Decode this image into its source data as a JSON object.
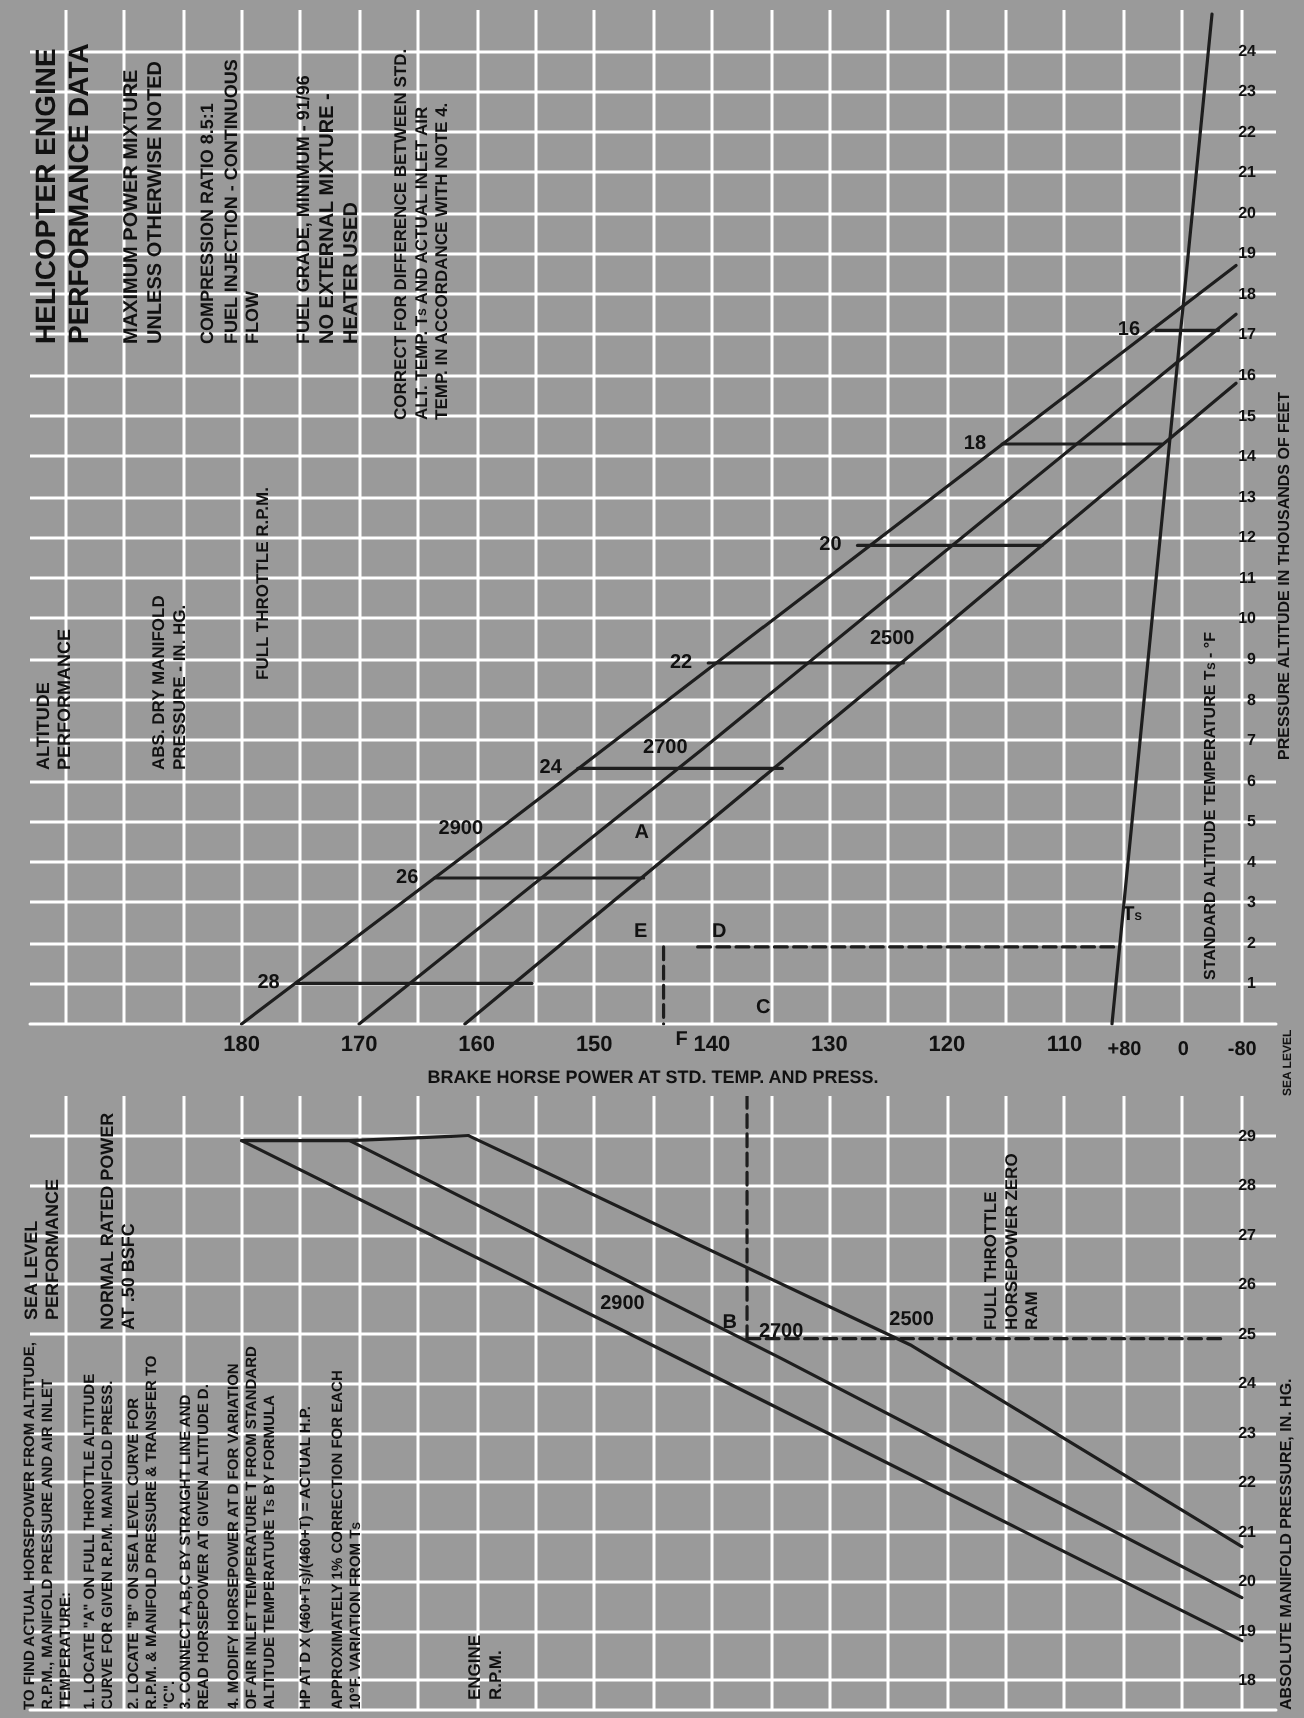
{
  "chart_data": [
    {
      "type": "line",
      "title": "HELICOPTER ENGINE PERFORMANCE DATA",
      "subtitle": "ALTITUDE PERFORMANCE",
      "xlabel": "BRAKE HORSE POWER AT STD. TEMP. AND PRESS.",
      "ylabel": "PRESSURE ALTITUDE IN THOUSANDS OF FEET",
      "x2label": "STANDARD ALTITUDE TEMPERATURE T$_{S}$ - °F",
      "xlim": [
        198,
        92
      ],
      "xticks": [
        {
          "value": 195,
          "label": null
        },
        {
          "value": 190,
          "label": null
        },
        {
          "value": 185,
          "label": null
        },
        180,
        {
          "value": 175,
          "label": null
        },
        170,
        {
          "value": 165,
          "label": null
        },
        160,
        {
          "value": 155,
          "label": null
        },
        150,
        {
          "value": 145,
          "label": null
        },
        140,
        {
          "value": 135,
          "label": null
        },
        130,
        {
          "value": 125,
          "label": null
        },
        120,
        {
          "value": 115,
          "label": null
        },
        110,
        {
          "value": 105,
          "label": null
        },
        {
          "value": 100,
          "label": null
        },
        {
          "value": 95,
          "label": null
        }
      ],
      "ylim": [
        0,
        25
      ],
      "yticks": [
        1,
        2,
        3,
        4,
        5,
        6,
        7,
        8,
        9,
        10,
        11,
        12,
        13,
        14,
        15,
        16,
        17,
        18,
        19,
        20,
        21,
        22,
        23,
        24
      ],
      "x2lim": [
        1568,
        -126
      ],
      "x2ticks": [
        {
          "value": 80,
          "label": "+80"
        },
        0,
        {
          "value": -80,
          "label": "-80"
        }
      ],
      "grid": true,
      "marker": "none",
      "series": [
        {
          "name": "2900",
          "color": "#1e1e1e",
          "x": [
            180,
            158.1,
            95.4
          ],
          "values": [
            0,
            4.8,
            18.7
          ]
        },
        {
          "name": "2700",
          "color": "#1e1e1e",
          "x": [
            170,
            140.7,
            95.4
          ],
          "values": [
            0,
            6.8,
            17.5
          ]
        },
        {
          "name": "2500",
          "color": "#1e1e1e",
          "x": [
            161,
            121.4,
            95.4
          ],
          "values": [
            0,
            9.5,
            15.8
          ]
        },
        {
          "name": "28",
          "color": "#1e1e1e",
          "x": [
            175.4,
            155.3
          ],
          "values": [
            1.0,
            1.0
          ]
        },
        {
          "name": "26",
          "color": "#1e1e1e",
          "x": [
            163.6,
            145.8
          ],
          "values": [
            3.6,
            3.6
          ]
        },
        {
          "name": "24",
          "color": "#1e1e1e",
          "x": [
            151.4,
            134
          ],
          "values": [
            6.3,
            6.3
          ]
        },
        {
          "name": "22",
          "color": "#1e1e1e",
          "x": [
            140.3,
            123.7
          ],
          "values": [
            8.9,
            8.9
          ]
        },
        {
          "name": "20",
          "color": "#1e1e1e",
          "x": [
            127.6,
            111.9
          ],
          "values": [
            11.8,
            11.8
          ]
        },
        {
          "name": "18",
          "color": "#1e1e1e",
          "x": [
            115.3,
            101.7
          ],
          "values": [
            14.3,
            14.3
          ]
        },
        {
          "name": "16",
          "color": "#1e1e1e",
          "x": [
            102.2,
            96.9
          ],
          "values": [
            17.1,
            17.1
          ]
        },
        {
          "color": "#1e1e1e",
          "axis": "x2",
          "x": [
            97,
            -39
          ],
          "values": [
            0,
            24.9
          ]
        },
        {
          "color": "#1e1e1e",
          "line_style": "dashed",
          "x": [
            141.2,
            105.6
          ],
          "values": [
            1.9,
            1.9
          ]
        },
        {
          "color": "#1e1e1e",
          "line_style": "dashed",
          "x": [
            144.1,
            144.1
          ],
          "values": [
            1.9,
            0
          ]
        }
      ],
      "annotations": [
        "MAXIMUM POWER MIXTURE UNLESS OTHERWISE NOTED",
        "COMPRESSION RATIO 8.5:1",
        "FUEL INJECTION - CONTINUOUS FLOW",
        "FUEL GRADE, MINIMUM - 91/96",
        "NO EXTERNAL MIXTURE - HEATER USED",
        "CORRECT FOR DIFFERENCE BETWEEN STD. ALT. TEMP. T$_{S}$ AND ACTUAL INLET AIR TEMP. IN ACCORDANCE WITH NOTE 4.",
        "ABS. DRY MANIFOLD PRESSURE - IN. HG.",
        "FULL THROTTLE R.P.M.",
        "SEA LEVEL",
        "D",
        "E",
        "C",
        {
          "text": "A",
          "x": 147.6,
          "y": 5.1
        },
        {
          "text": "F",
          "x": 144.1,
          "y": 0
        },
        {
          "text": "T$_{S}$",
          "x": 106.1,
          "y": 2.35
        }
      ]
    },
    {
      "type": "line",
      "title": "SEA LEVEL PERFORMANCE",
      "ylabel": "ABSOLUTE MANIFOLD PRESSURE, IN. HG.",
      "xlim": [
        198,
        92
      ],
      "xticks": [
        {
          "value": 195,
          "label": null
        },
        {
          "value": 190,
          "label": null
        },
        {
          "value": 185,
          "label": null
        },
        180,
        {
          "value": 175,
          "label": null
        },
        170,
        {
          "value": 165,
          "label": null
        },
        160,
        {
          "value": 155,
          "label": null
        },
        150,
        {
          "value": 145,
          "label": null
        },
        140,
        {
          "value": 135,
          "label": null
        },
        130,
        {
          "value": 125,
          "label": null
        },
        120,
        {
          "value": 115,
          "label": null
        },
        110,
        {
          "value": 105,
          "label": null
        },
        {
          "value": 100,
          "label": null
        },
        {
          "value": 95,
          "label": null
        }
      ],
      "ylim": [
        17.4,
        29.8
      ],
      "yticks": [
        18,
        19,
        20,
        21,
        22,
        23,
        24,
        25,
        26,
        27,
        28,
        29
      ],
      "tick_labels": "y",
      "grid": true,
      "marker": "none",
      "series": [
        {
          "name": "2900",
          "color": "#1e1e1e",
          "x": [
            180,
            147.6,
            94.9
          ],
          "values": [
            28.9,
            25.07,
            18.8
          ]
        },
        {
          "name": "2700",
          "color": "#1e1e1e",
          "x": [
            170.8,
            134.1,
            94.9
          ],
          "values": [
            28.9,
            24.5,
            19.67
          ]
        },
        {
          "name": "2500",
          "color": "#1e1e1e",
          "x": [
            160.7,
            123.0,
            94.9
          ],
          "values": [
            29.0,
            24.76,
            20.7
          ]
        },
        {
          "color": "#1e1e1e",
          "x": [
            180,
            170.8,
            160.7
          ],
          "values": [
            28.9,
            28.9,
            29.0
          ]
        },
        {
          "color": "#1e1e1e",
          "line_style": "dashed",
          "x": [
            137,
            96.5
          ],
          "values": [
            24.9,
            24.9
          ]
        },
        {
          "color": "#1e1e1e",
          "line_style": "dashed",
          "x": [
            137,
            137
          ],
          "values": [
            24.9,
            29.8
          ]
        }
      ],
      "annotations": [
        "NORMAL RATED POWER AT .50 BSFC",
        "TO FIND ACTUAL HORSEPOWER FROM ALTITUDE, R.P.M., MANIFOLD PRESSURE AND AIR INLET TEMPERATURE:",
        "1. LOCATE \"A\" ON FULL THROTTLE ALTITUDE CURVE FOR GIVEN R.P.M. MANIFOLD PRESS.",
        "2. LOCATE \"B\" ON SEA LEVEL CURVE FOR R.P.M. & MANIFOLD PRESSURE & TRANSFER TO \"C\".",
        "3. CONNECT A,B,C BY STRAIGHT LINE AND READ HORSEPOWER AT GIVEN ALTITUDE D.",
        "4. MODIFY HORSEPOWER AT D FOR VARIATION OF AIR INLET TEMPERATURE T FROM STANDARD ALTITUDE TEMPERATURE T$_{S}$ BY FORMULA",
        "HP AT D X (460+T$_{S}$)/(460+T) = ACTUAL H.P.",
        "APPROXIMATELY 1% CORRECTION FOR EACH 10°F. VARIATION FROM T$_{S}$",
        "FULL THROTTLE HORSEPOWER ZERO RAM",
        "ENGINE R.P.M.",
        {
          "text": "B",
          "x": 137,
          "y": 24.9
        }
      ]
    }
  ]
}
